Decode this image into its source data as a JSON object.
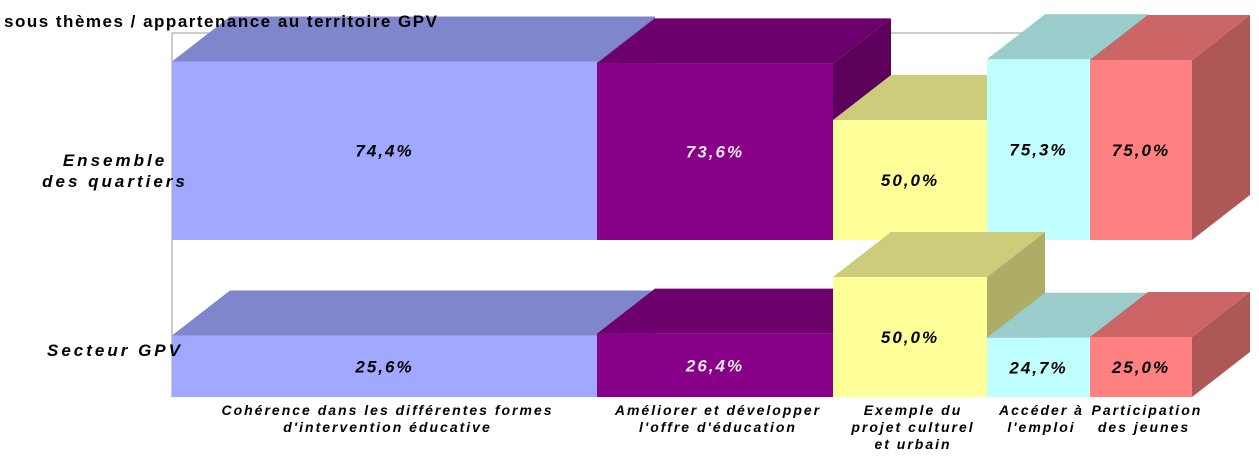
{
  "chart_data": {
    "type": "bar3d",
    "title": "sous thèmes / appartenance au territoire GPV",
    "categories": [
      "Cohérence dans les différentes formes d'intervention éducative",
      "Améliorer et développer l'offre d'éducation",
      "Exemple du projet culturel et urbain",
      "Accéder à l'emploi",
      "Participation des jeunes"
    ],
    "colors": [
      "#a0a8ff",
      "#880088",
      "#ffff99",
      "#c0ffff",
      "#ff8080"
    ],
    "series": [
      {
        "name": "Ensemble des quartiers",
        "values": [
          74.4,
          73.6,
          50.0,
          75.3,
          75.0
        ],
        "value_labels": [
          "74,4%",
          "73,6%",
          "50,0%",
          "75,3%",
          "75,0%"
        ]
      },
      {
        "name": "Secteur GPV",
        "values": [
          25.6,
          26.4,
          50.0,
          24.7,
          25.0
        ],
        "value_labels": [
          "25,6%",
          "26,4%",
          "50,0%",
          "24,7%",
          "25,0%"
        ]
      }
    ]
  }
}
